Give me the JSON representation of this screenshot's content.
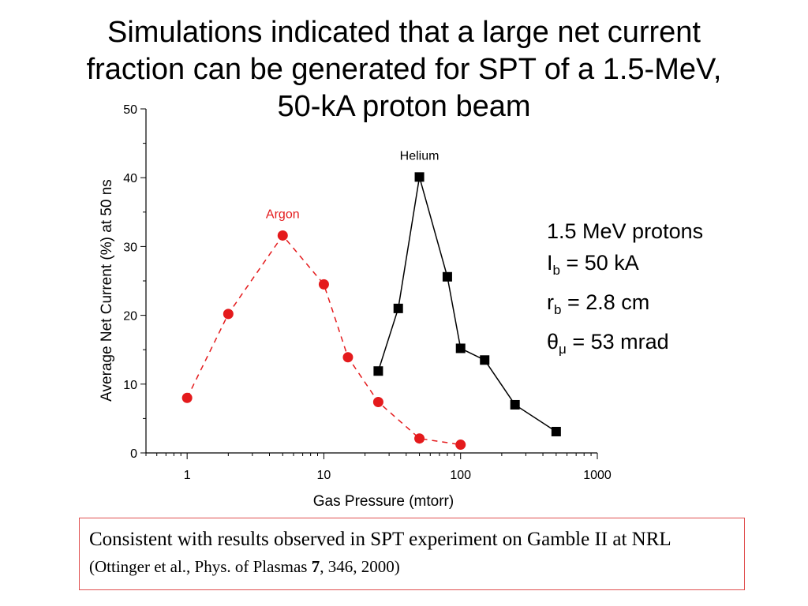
{
  "title_lines": [
    "Simulations indicated that a large net current",
    "fraction can be generated for SPT of a 1.5-MeV,",
    "50-kA proton beam"
  ],
  "chart_data": {
    "type": "line",
    "xlabel": "Gas Pressure (mtorr)",
    "ylabel": "Average Net Current (%) at 50 ns",
    "xscale": "log",
    "xlim": [
      0.5,
      1000
    ],
    "ylim": [
      0,
      50
    ],
    "xticks": [
      "1",
      "10",
      "100",
      "1000"
    ],
    "yticks": [
      "0",
      "10",
      "20",
      "30",
      "40",
      "50"
    ],
    "grid": false,
    "series": [
      {
        "name": "Argon",
        "color": "#e41a1c",
        "marker": "circle",
        "line": "dashed",
        "x": [
          1,
          2,
          5,
          10,
          15,
          25,
          50,
          100
        ],
        "y": [
          8,
          20.2,
          31.6,
          24.5,
          13.9,
          7.4,
          2.1,
          1.2
        ]
      },
      {
        "name": "Helium",
        "color": "#000000",
        "marker": "square",
        "line": "solid",
        "x": [
          25,
          35,
          50,
          80,
          100,
          150,
          250,
          500
        ],
        "y": [
          11.9,
          21,
          40.1,
          25.6,
          15.2,
          13.5,
          7,
          3.1
        ]
      }
    ]
  },
  "params": {
    "line1": "1.5 MeV protons",
    "ib_symbol": "I",
    "ib_sub": "b",
    "ib_value": " = 50 kA",
    "rb_symbol": "r",
    "rb_sub": "b",
    "rb_value": " = 2.8 cm",
    "theta_symbol": "θ",
    "theta_sub": "μ",
    "theta_value": " = 53 mrad"
  },
  "citation": {
    "main": "Consistent with results observed in SPT experiment on Gamble II at NRL",
    "ref_prefix": "(Ottinger et al., Phys. of Plasmas",
    "ref_volume": "7",
    "ref_suffix": ", 346, 2000)"
  }
}
